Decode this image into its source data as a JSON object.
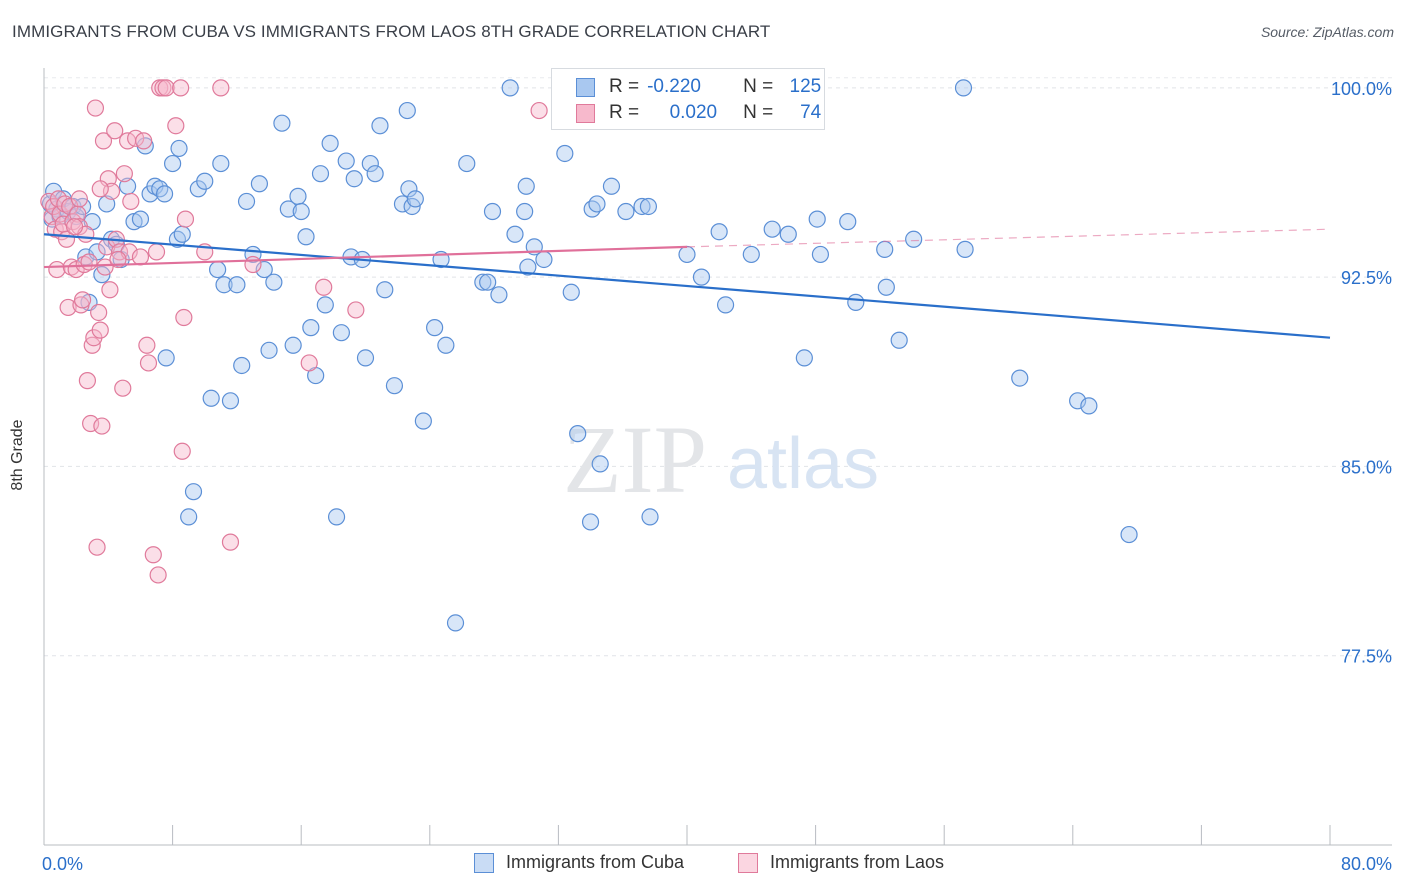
{
  "header": {
    "title": "IMMIGRANTS FROM CUBA VS IMMIGRANTS FROM LAOS 8TH GRADE CORRELATION CHART",
    "source": "Source: ZipAtlas.com"
  },
  "watermark": {
    "zip": "ZIP",
    "atlas": "atlas"
  },
  "legend": {
    "rows": [
      {
        "r_label": "R =",
        "r_value": "-0.220",
        "n_label": "N =",
        "n_value": "125",
        "color": "#a9c8f0",
        "stroke": "#5b8fd6"
      },
      {
        "r_label": "R =",
        "r_value": "0.020",
        "n_label": "N =",
        "n_value": "74",
        "color": "#f7b9cc",
        "stroke": "#e07a9b"
      }
    ]
  },
  "bottom_legend": {
    "cuba": "Immigrants from Cuba",
    "laos": "Immigrants from Laos"
  },
  "chart_data": {
    "type": "scatter",
    "title": "IMMIGRANTS FROM CUBA VS IMMIGRANTS FROM LAOS 8TH GRADE CORRELATION CHART",
    "xlabel": "",
    "ylabel": "8th Grade",
    "xlim": [
      0,
      80
    ],
    "ylim": [
      70,
      101.5
    ],
    "x_tick_labels": [
      "0.0%",
      "80.0%"
    ],
    "y_ticks": [
      77.5,
      85.0,
      92.5,
      100.0
    ],
    "y_tick_labels": [
      "77.5%",
      "85.0%",
      "92.5%",
      "100.0%"
    ],
    "grid": true,
    "colors": {
      "cuba_fill": "#a9c8f0",
      "cuba_stroke": "#5b8fd6",
      "cuba_line": "#2a6fca",
      "laos_fill": "#f7b9cc",
      "laos_stroke": "#e07a9b",
      "laos_line": "#e0709a",
      "tick_label": "#2a6fca"
    },
    "series": [
      {
        "name": "Immigrants from Cuba",
        "trend": {
          "x": [
            0,
            80
          ],
          "y": [
            94.2,
            90.1
          ],
          "style": "solid"
        },
        "points": [
          [
            0.4,
            95.4
          ],
          [
            0.5,
            94.8
          ],
          [
            0.6,
            95.9
          ],
          [
            0.8,
            95.2
          ],
          [
            1.0,
            94.9
          ],
          [
            1.2,
            95.6
          ],
          [
            1.5,
            95.1
          ],
          [
            1.8,
            95.3
          ],
          [
            2.0,
            94.9
          ],
          [
            2.4,
            95.3
          ],
          [
            2.6,
            93.3
          ],
          [
            2.8,
            91.5
          ],
          [
            3.0,
            94.7
          ],
          [
            3.3,
            93.5
          ],
          [
            3.6,
            92.6
          ],
          [
            3.9,
            95.4
          ],
          [
            4.2,
            94.0
          ],
          [
            4.5,
            93.8
          ],
          [
            4.8,
            93.2
          ],
          [
            5.2,
            96.1
          ],
          [
            5.6,
            94.7
          ],
          [
            6.0,
            94.8
          ],
          [
            6.3,
            97.7
          ],
          [
            6.6,
            95.8
          ],
          [
            6.9,
            96.1
          ],
          [
            7.2,
            96.0
          ],
          [
            7.5,
            95.8
          ],
          [
            7.6,
            89.3
          ],
          [
            8.0,
            97.0
          ],
          [
            8.3,
            94.0
          ],
          [
            8.4,
            97.6
          ],
          [
            8.6,
            94.2
          ],
          [
            9.0,
            83.0
          ],
          [
            9.3,
            84.0
          ],
          [
            9.6,
            96.0
          ],
          [
            10.0,
            96.3
          ],
          [
            10.4,
            87.7
          ],
          [
            10.8,
            92.8
          ],
          [
            11.0,
            97.0
          ],
          [
            11.2,
            92.2
          ],
          [
            11.6,
            87.6
          ],
          [
            12.0,
            92.2
          ],
          [
            12.3,
            89.0
          ],
          [
            12.6,
            95.5
          ],
          [
            13.0,
            93.4
          ],
          [
            13.4,
            96.2
          ],
          [
            13.7,
            92.8
          ],
          [
            14.0,
            89.6
          ],
          [
            14.3,
            92.3
          ],
          [
            14.8,
            98.6
          ],
          [
            15.2,
            95.2
          ],
          [
            15.5,
            89.8
          ],
          [
            15.8,
            95.7
          ],
          [
            16.0,
            95.1
          ],
          [
            16.3,
            94.1
          ],
          [
            16.6,
            90.5
          ],
          [
            16.9,
            88.6
          ],
          [
            17.2,
            96.6
          ],
          [
            17.5,
            91.4
          ],
          [
            17.8,
            97.8
          ],
          [
            18.2,
            83.0
          ],
          [
            18.5,
            90.3
          ],
          [
            18.8,
            97.1
          ],
          [
            19.1,
            93.3
          ],
          [
            19.3,
            96.4
          ],
          [
            19.8,
            93.2
          ],
          [
            20.0,
            89.3
          ],
          [
            20.3,
            97.0
          ],
          [
            20.6,
            96.6
          ],
          [
            20.9,
            98.5
          ],
          [
            21.2,
            92.0
          ],
          [
            21.8,
            88.2
          ],
          [
            22.3,
            95.4
          ],
          [
            22.6,
            99.1
          ],
          [
            22.7,
            96.0
          ],
          [
            22.9,
            95.3
          ],
          [
            23.1,
            95.6
          ],
          [
            23.6,
            86.8
          ],
          [
            24.3,
            90.5
          ],
          [
            24.7,
            93.2
          ],
          [
            25.0,
            89.8
          ],
          [
            25.6,
            78.8
          ],
          [
            26.3,
            97.0
          ],
          [
            27.3,
            92.3
          ],
          [
            27.6,
            92.3
          ],
          [
            27.9,
            95.1
          ],
          [
            28.3,
            91.8
          ],
          [
            29.0,
            100.0
          ],
          [
            29.3,
            94.2
          ],
          [
            29.9,
            95.1
          ],
          [
            30.0,
            96.1
          ],
          [
            30.1,
            92.9
          ],
          [
            30.5,
            93.7
          ],
          [
            31.1,
            93.2
          ],
          [
            32.4,
            97.4
          ],
          [
            32.8,
            91.9
          ],
          [
            33.2,
            86.3
          ],
          [
            34.1,
            95.2
          ],
          [
            34.4,
            95.4
          ],
          [
            34.0,
            82.8
          ],
          [
            34.6,
            85.1
          ],
          [
            35.3,
            96.1
          ],
          [
            36.2,
            95.1
          ],
          [
            37.2,
            95.3
          ],
          [
            37.6,
            95.3
          ],
          [
            37.7,
            83.0
          ],
          [
            40.0,
            93.4
          ],
          [
            40.9,
            92.5
          ],
          [
            42.0,
            94.3
          ],
          [
            42.4,
            91.4
          ],
          [
            44.0,
            93.4
          ],
          [
            45.3,
            94.4
          ],
          [
            46.3,
            94.2
          ],
          [
            47.3,
            89.3
          ],
          [
            48.1,
            94.8
          ],
          [
            48.3,
            93.4
          ],
          [
            50.0,
            94.7
          ],
          [
            50.5,
            91.5
          ],
          [
            52.3,
            93.6
          ],
          [
            52.4,
            92.1
          ],
          [
            53.2,
            90.0
          ],
          [
            54.1,
            94.0
          ],
          [
            57.2,
            100.0
          ],
          [
            57.3,
            93.6
          ],
          [
            60.7,
            88.5
          ],
          [
            64.3,
            87.6
          ],
          [
            65.0,
            87.4
          ],
          [
            67.5,
            82.3
          ]
        ]
      },
      {
        "name": "Immigrants from Laos",
        "trend": {
          "x": [
            0,
            40
          ],
          "y": [
            92.9,
            93.7
          ],
          "style": "solid",
          "dashed_extension": {
            "x": [
              40,
              80
            ],
            "y": [
              93.7,
              94.4
            ]
          }
        },
        "points": [
          [
            0.3,
            95.5
          ],
          [
            0.5,
            94.9
          ],
          [
            0.6,
            95.3
          ],
          [
            0.7,
            94.4
          ],
          [
            0.8,
            92.8
          ],
          [
            0.9,
            95.6
          ],
          [
            1.0,
            95.0
          ],
          [
            1.1,
            94.3
          ],
          [
            1.2,
            94.6
          ],
          [
            1.3,
            95.4
          ],
          [
            1.4,
            94.0
          ],
          [
            1.5,
            91.3
          ],
          [
            1.6,
            95.3
          ],
          [
            1.7,
            92.9
          ],
          [
            1.8,
            94.7
          ],
          [
            2.0,
            92.8
          ],
          [
            2.1,
            95.0
          ],
          [
            2.2,
            94.5
          ],
          [
            2.3,
            91.4
          ],
          [
            2.4,
            91.6
          ],
          [
            2.5,
            93.0
          ],
          [
            2.6,
            94.2
          ],
          [
            2.7,
            88.4
          ],
          [
            2.8,
            93.1
          ],
          [
            2.9,
            86.7
          ],
          [
            3.0,
            89.8
          ],
          [
            3.1,
            90.1
          ],
          [
            3.2,
            99.2
          ],
          [
            3.3,
            81.8
          ],
          [
            3.4,
            91.1
          ],
          [
            3.5,
            90.4
          ],
          [
            3.6,
            86.6
          ],
          [
            3.7,
            97.9
          ],
          [
            3.8,
            92.9
          ],
          [
            3.9,
            93.7
          ],
          [
            4.0,
            96.4
          ],
          [
            4.1,
            92.0
          ],
          [
            4.2,
            95.9
          ],
          [
            4.4,
            98.3
          ],
          [
            4.5,
            94.0
          ],
          [
            4.7,
            93.5
          ],
          [
            4.9,
            88.1
          ],
          [
            5.0,
            96.6
          ],
          [
            5.2,
            97.9
          ],
          [
            5.3,
            93.5
          ],
          [
            5.4,
            95.5
          ],
          [
            5.7,
            98.0
          ],
          [
            6.0,
            93.3
          ],
          [
            6.2,
            97.9
          ],
          [
            6.4,
            89.8
          ],
          [
            6.5,
            89.1
          ],
          [
            6.8,
            81.5
          ],
          [
            7.0,
            93.5
          ],
          [
            7.1,
            80.7
          ],
          [
            7.2,
            100.0
          ],
          [
            7.4,
            100.0
          ],
          [
            7.6,
            100.0
          ],
          [
            8.2,
            98.5
          ],
          [
            8.5,
            100.0
          ],
          [
            8.6,
            85.6
          ],
          [
            8.7,
            90.9
          ],
          [
            8.8,
            94.8
          ],
          [
            10.0,
            93.5
          ],
          [
            11.0,
            100.0
          ],
          [
            11.6,
            82.0
          ],
          [
            13.0,
            93.0
          ],
          [
            16.5,
            89.1
          ],
          [
            17.4,
            92.1
          ],
          [
            19.4,
            91.2
          ],
          [
            30.8,
            99.1
          ],
          [
            3.5,
            96.0
          ],
          [
            1.9,
            94.5
          ],
          [
            2.2,
            95.6
          ],
          [
            4.6,
            93.2
          ]
        ]
      }
    ]
  }
}
